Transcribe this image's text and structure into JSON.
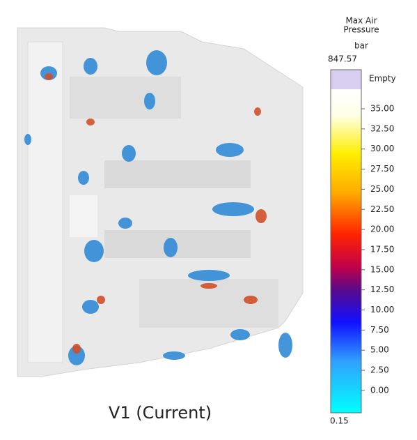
{
  "legend": {
    "title_lines": [
      "Max Air",
      "Pressure"
    ],
    "unit": "bar",
    "max": "847.57",
    "empty": "Empty",
    "ticks": [
      "35.00",
      "32.50",
      "30.00",
      "27.50",
      "25.00",
      "22.50",
      "20.00",
      "17.50",
      "15.00",
      "12.50",
      "10.00",
      "7.50",
      "5.00",
      "2.50",
      "0.00"
    ],
    "min": "0.15"
  },
  "caption": "V1 (Current)"
}
